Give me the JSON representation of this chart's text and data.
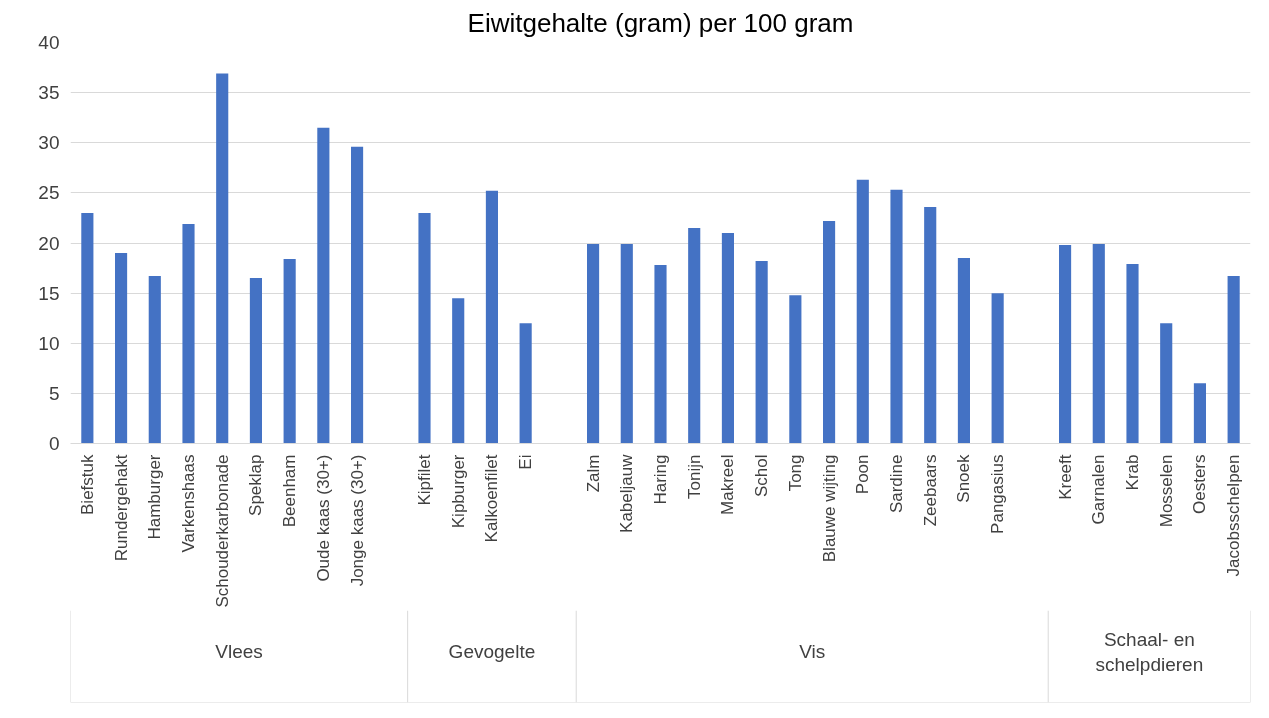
{
  "chart_data": {
    "type": "bar",
    "title": "Eiwitgehalte (gram) per 100 gram",
    "categories": [
      "Biefstuk",
      "Rundergehakt",
      "Hamburger",
      "Varkenshaas",
      "Schouderkarbonade",
      "Speklap",
      "Beenham",
      "Oude kaas (30+)",
      "Jonge kaas (30+)",
      null,
      "Kipfilet",
      "Kipburger",
      "Kalkoenfilet",
      "Ei",
      null,
      "Zalm",
      "Kabeljauw",
      "Haring",
      "Tonijn",
      "Makreel",
      "Schol",
      "Tong",
      "Blauwe wijting",
      "Poon",
      "Sardine",
      "Zeebaars",
      "Snoek",
      "Pangasius",
      null,
      "Kreeft",
      "Garnalen",
      "Krab",
      "Mosselen",
      "Oesters",
      "Jacobsschelpen"
    ],
    "values": [
      23,
      19,
      16.7,
      21.9,
      36.9,
      16.5,
      18.4,
      31.5,
      29.6,
      null,
      23,
      14.5,
      25.2,
      12,
      null,
      19.9,
      19.9,
      17.8,
      21.5,
      21,
      18.2,
      14.8,
      22.2,
      26.3,
      25.3,
      23.6,
      18.5,
      15,
      null,
      19.8,
      19.9,
      17.9,
      12,
      6,
      16.7
    ],
    "color": "#4472c4",
    "ylim": [
      0,
      40
    ],
    "yticks": [
      0,
      5,
      10,
      15,
      20,
      25,
      30,
      35,
      40
    ],
    "grid": "y",
    "annotations": [
      "Vlees",
      "Gevogelte",
      "Vis",
      "Schaal- en schelpdieren"
    ]
  }
}
